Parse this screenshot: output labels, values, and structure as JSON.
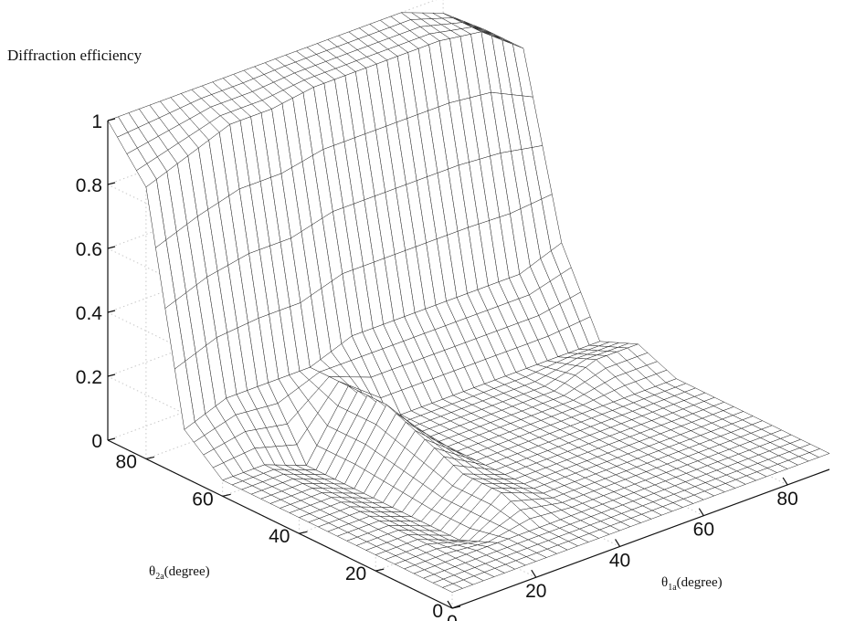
{
  "chart_data": {
    "type": "surface",
    "title": "Diffraction efficiency",
    "xlabel": {
      "symbol": "θ",
      "subscript": "1a",
      "unit": "(degree)"
    },
    "ylabel": {
      "symbol": "θ",
      "subscript": "2a",
      "unit": "(degree)"
    },
    "zlabel": "Diffraction efficiency",
    "x_ticks": [
      "0",
      "20",
      "40",
      "60",
      "80"
    ],
    "y_ticks": [
      "0",
      "20",
      "40",
      "60",
      "80"
    ],
    "z_ticks": [
      "0",
      "0.2",
      "0.4",
      "0.6",
      "0.8",
      "1"
    ],
    "xlim": [
      0,
      90
    ],
    "ylim": [
      0,
      90
    ],
    "zlim": [
      0,
      1
    ],
    "grid": true,
    "x": [
      0,
      10,
      20,
      30,
      40,
      50,
      60,
      70,
      80,
      90
    ],
    "y": [
      0,
      10,
      20,
      30,
      40,
      50,
      60,
      70,
      80,
      90
    ],
    "z_sample_rows": [
      [
        0.05,
        0.05,
        0.05,
        0.05,
        0.05,
        0.05,
        0.05,
        0.05,
        0.05,
        0.05
      ],
      [
        0.05,
        0.05,
        0.05,
        0.05,
        0.05,
        0.05,
        0.05,
        0.05,
        0.05,
        0.05
      ],
      [
        0.05,
        0.05,
        0.0,
        0.1,
        0.05,
        0.05,
        0.05,
        0.05,
        0.05,
        0.05
      ],
      [
        0.05,
        0.05,
        0.0,
        0.1,
        0.05,
        0.05,
        0.05,
        0.05,
        0.05,
        0.05
      ],
      [
        0.05,
        0.05,
        0.0,
        0.15,
        0.05,
        0.05,
        0.05,
        0.05,
        0.05,
        0.05
      ],
      [
        0.05,
        0.05,
        0.0,
        0.2,
        0.05,
        0.05,
        0.05,
        0.05,
        0.1,
        0.1
      ],
      [
        0.05,
        0.05,
        0.0,
        0.2,
        0.05,
        0.05,
        0.05,
        0.05,
        0.05,
        0.05
      ],
      [
        0.15,
        0.2,
        0.2,
        0.2,
        0.25,
        0.25,
        0.25,
        0.25,
        0.25,
        0.3
      ],
      [
        0.85,
        0.9,
        0.95,
        0.95,
        0.97,
        0.97,
        0.97,
        0.97,
        0.95,
        0.85
      ],
      [
        1.0,
        1.0,
        1.0,
        1.0,
        1.0,
        1.0,
        1.0,
        1.0,
        0.95,
        0.85
      ]
    ]
  }
}
